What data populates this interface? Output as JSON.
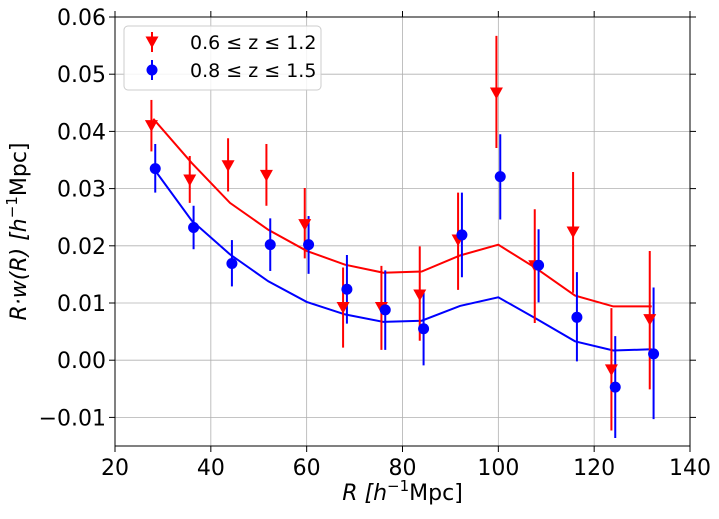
{
  "chart_data": {
    "type": "scatter",
    "title": "",
    "xlabel": "R [h^-1 Mpc]",
    "ylabel": "R·w(R) [h^-1 Mpc]",
    "xlim": [
      20,
      140
    ],
    "ylim": [
      -0.015,
      0.06
    ],
    "xticks": [
      20,
      40,
      60,
      80,
      100,
      120,
      140
    ],
    "xtick_labels": [
      "20",
      "40",
      "60",
      "80",
      "100",
      "120",
      "140"
    ],
    "yticks": [
      -0.01,
      0.0,
      0.01,
      0.02,
      0.03,
      0.04,
      0.05,
      0.06
    ],
    "ytick_labels": [
      "−0.01",
      "0.00",
      "0.01",
      "0.02",
      "0.03",
      "0.04",
      "0.05",
      "0.06"
    ],
    "grid": true,
    "legend_position": "top-left",
    "series": [
      {
        "name": "0.6 ≤ z ≤ 1.2",
        "color": "#ff0000",
        "marker": "triangle-down",
        "points": [
          {
            "x": 27.6,
            "y": 0.041,
            "lo": 0.0365,
            "hi": 0.0455
          },
          {
            "x": 35.6,
            "y": 0.0315,
            "lo": 0.0275,
            "hi": 0.0357
          },
          {
            "x": 43.6,
            "y": 0.034,
            "lo": 0.0295,
            "hi": 0.0388
          },
          {
            "x": 51.6,
            "y": 0.0323,
            "lo": 0.027,
            "hi": 0.0378
          },
          {
            "x": 59.6,
            "y": 0.0237,
            "lo": 0.0178,
            "hi": 0.0301
          },
          {
            "x": 67.6,
            "y": 0.0092,
            "lo": 0.0022,
            "hi": 0.0162
          },
          {
            "x": 75.6,
            "y": 0.0092,
            "lo": 0.0018,
            "hi": 0.0165
          },
          {
            "x": 83.6,
            "y": 0.0114,
            "lo": 0.0034,
            "hi": 0.0199
          },
          {
            "x": 91.6,
            "y": 0.021,
            "lo": 0.0123,
            "hi": 0.0293
          },
          {
            "x": 99.6,
            "y": 0.0467,
            "lo": 0.0371,
            "hi": 0.0567
          },
          {
            "x": 107.6,
            "y": 0.0165,
            "lo": 0.0065,
            "hi": 0.0264
          },
          {
            "x": 115.6,
            "y": 0.0224,
            "lo": 0.0118,
            "hi": 0.0329
          },
          {
            "x": 123.6,
            "y": -0.0017,
            "lo": -0.0123,
            "hi": 0.0091
          },
          {
            "x": 131.6,
            "y": 0.0071,
            "lo": -0.0051,
            "hi": 0.0191
          }
        ],
        "model": {
          "x": [
            28,
            36,
            44,
            52,
            60,
            68,
            76,
            84,
            92,
            100,
            108,
            116,
            124,
            132
          ],
          "y": [
            0.0422,
            0.0345,
            0.0275,
            0.0228,
            0.0191,
            0.0167,
            0.0153,
            0.0155,
            0.0183,
            0.0202,
            0.016,
            0.0113,
            0.0094,
            0.0094
          ]
        }
      },
      {
        "name": "0.8 ≤ z ≤ 1.5",
        "color": "#0000ff",
        "marker": "circle",
        "points": [
          {
            "x": 28.4,
            "y": 0.0335,
            "lo": 0.0293,
            "hi": 0.0378
          },
          {
            "x": 36.4,
            "y": 0.0232,
            "lo": 0.0194,
            "hi": 0.027
          },
          {
            "x": 44.4,
            "y": 0.0169,
            "lo": 0.0129,
            "hi": 0.021
          },
          {
            "x": 52.4,
            "y": 0.0202,
            "lo": 0.0156,
            "hi": 0.0248
          },
          {
            "x": 60.4,
            "y": 0.0202,
            "lo": 0.0151,
            "hi": 0.0252
          },
          {
            "x": 68.4,
            "y": 0.0124,
            "lo": 0.0064,
            "hi": 0.0184
          },
          {
            "x": 76.4,
            "y": 0.0088,
            "lo": 0.0018,
            "hi": 0.0157
          },
          {
            "x": 84.4,
            "y": 0.0055,
            "lo": -0.0009,
            "hi": 0.0118
          },
          {
            "x": 92.4,
            "y": 0.0219,
            "lo": 0.0145,
            "hi": 0.0293
          },
          {
            "x": 100.4,
            "y": 0.0321,
            "lo": 0.0246,
            "hi": 0.0395
          },
          {
            "x": 108.4,
            "y": 0.0166,
            "lo": 0.0101,
            "hi": 0.0229
          },
          {
            "x": 116.4,
            "y": 0.0075,
            "lo": -0.0002,
            "hi": 0.0154
          },
          {
            "x": 124.4,
            "y": -0.0047,
            "lo": -0.0136,
            "hi": 0.0042
          },
          {
            "x": 132.4,
            "y": 0.0011,
            "lo": -0.0103,
            "hi": 0.0127
          }
        ],
        "model": {
          "x": [
            28,
            36,
            44,
            52,
            60,
            68,
            76,
            84,
            92,
            100,
            108,
            116,
            124,
            132
          ],
          "y": [
            0.0336,
            0.0244,
            0.0185,
            0.0138,
            0.0102,
            0.008,
            0.0067,
            0.0069,
            0.0095,
            0.011,
            0.0072,
            0.0033,
            0.0017,
            0.0019
          ]
        }
      }
    ]
  }
}
